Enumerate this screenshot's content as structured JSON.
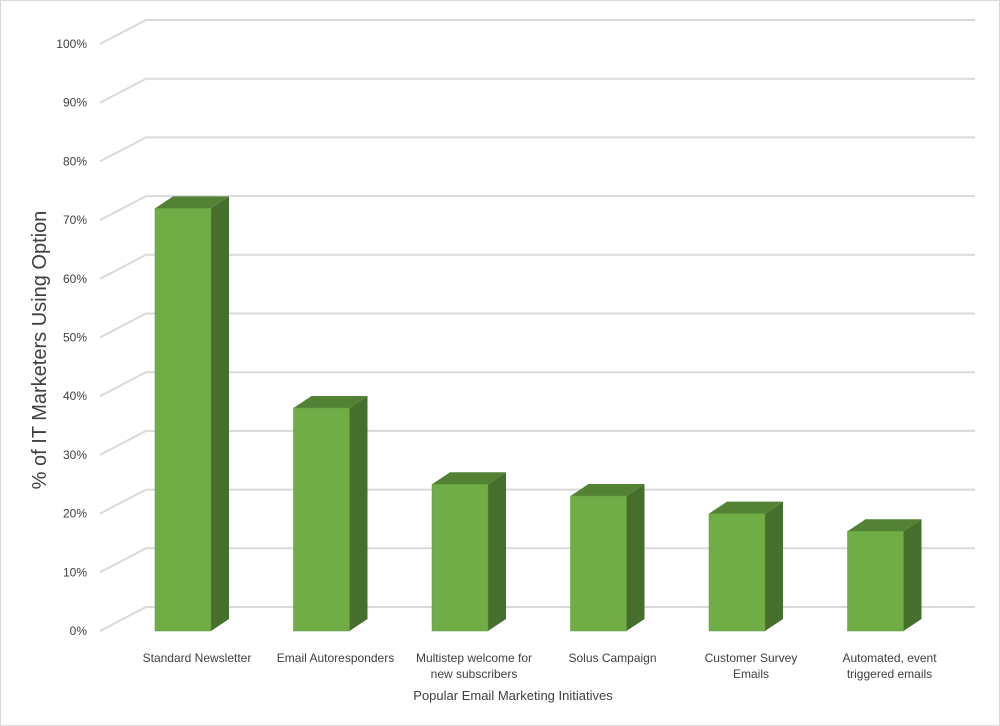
{
  "chart_data": {
    "type": "bar",
    "style": "3d-column",
    "xlabel": "Popular Email Marketing Initiatives",
    "ylabel": "% of IT Marketers Using Option",
    "ylim": [
      0,
      100
    ],
    "ytick_step": 10,
    "ytick_suffix": "%",
    "grid": true,
    "legend": "none",
    "categories": [
      [
        "Standard Newsletter"
      ],
      [
        "Email Autoresponders"
      ],
      [
        "Multistep welcome for",
        "new subscribers"
      ],
      [
        "Solus Campaign"
      ],
      [
        "Customer Survey",
        "Emails"
      ],
      [
        "Automated, event",
        "triggered emails"
      ]
    ],
    "values": [
      72,
      38,
      25,
      23,
      20,
      17
    ],
    "colors": {
      "bar_front": "#70ad47",
      "bar_side": "#466e2c",
      "bar_top": "#548235",
      "gridline": "#d9d9d9",
      "text": "#404040"
    }
  }
}
